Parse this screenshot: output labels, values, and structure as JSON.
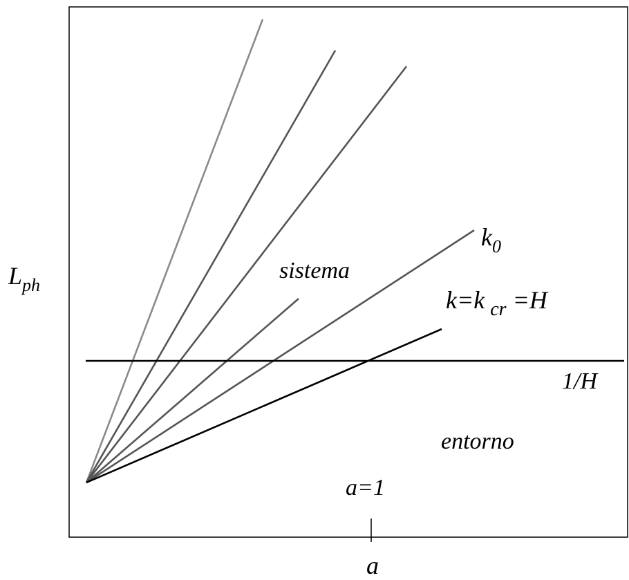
{
  "diagram": {
    "y_axis_label": {
      "main": "L",
      "sub": "ph"
    },
    "x_axis_label": "a",
    "region_system": "sistema",
    "region_environment": "entorno",
    "horizon_label": "1/H",
    "k0_label": {
      "main": "k",
      "sub": "0"
    },
    "kcr_label": {
      "a": "k=k",
      "sub": "cr",
      "b": " =H"
    },
    "a1_label": "a=1",
    "ray_colors": [
      "#8a8a8a",
      "#555555",
      "#555555",
      "#555555",
      "#555555",
      "#000000"
    ],
    "horizon_color": "#000000"
  }
}
